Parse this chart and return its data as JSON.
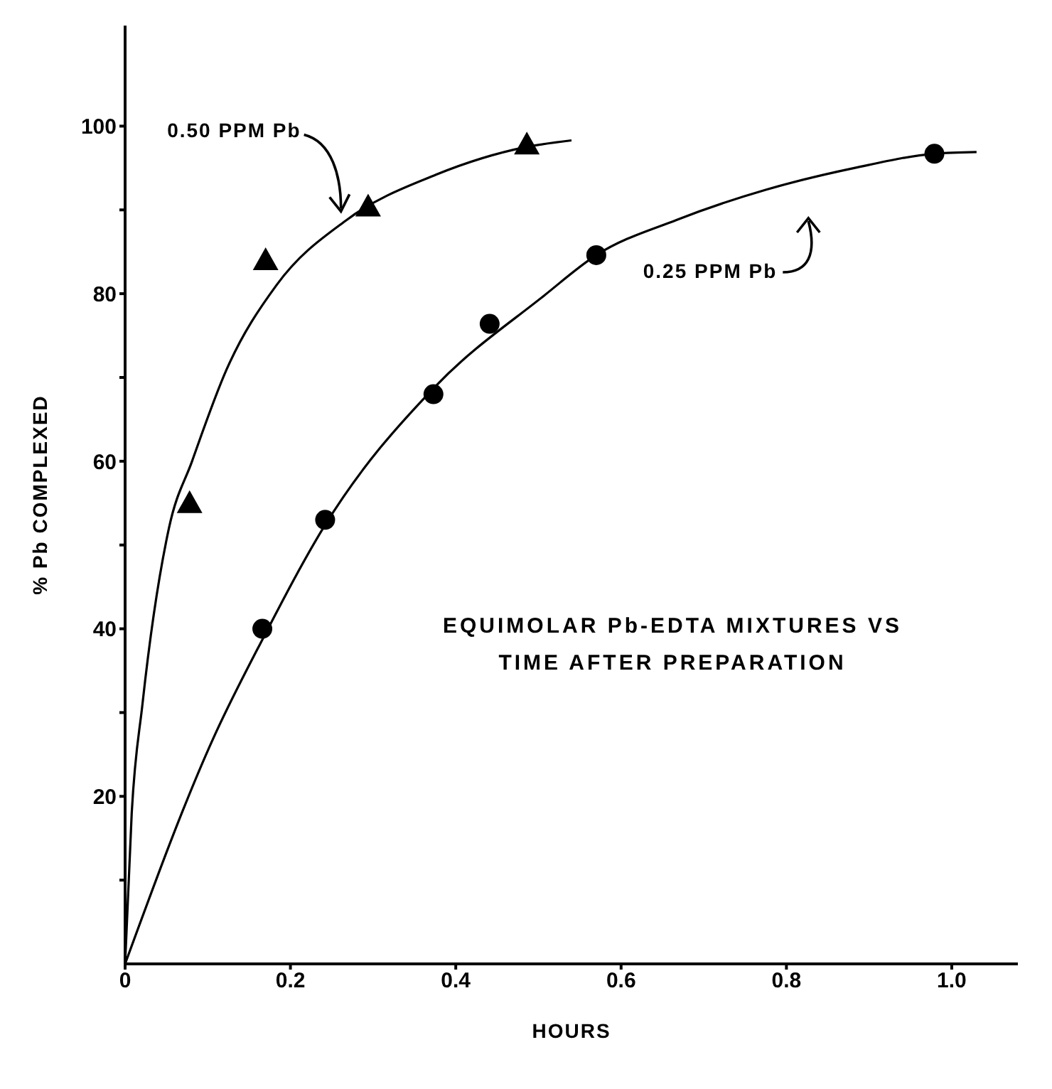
{
  "chart_data": {
    "type": "scatter",
    "title": "EQUIMOLAR Pb-EDTA MIXTURES VS TIME AFTER PREPARATION",
    "xlabel": "HOURS",
    "ylabel": "% Pb COMPLEXED",
    "xlim": [
      0,
      1.08
    ],
    "xticks": [
      0,
      0.2,
      0.4,
      0.6,
      0.8,
      {
        "value": 1,
        "label": "1.0"
      }
    ],
    "ylim": [
      0,
      112
    ],
    "yticks": [
      {
        "value": 10,
        "label": null
      },
      20,
      {
        "value": 30,
        "label": null
      },
      40,
      {
        "value": 50,
        "label": null
      },
      60,
      {
        "value": 70,
        "label": null
      },
      80,
      {
        "value": 90,
        "label": null
      },
      100
    ],
    "grid": false,
    "series": [
      {
        "name": "0.50 PPM Pb",
        "type": "line",
        "marker": "none",
        "line_style": "solid",
        "color": "#000000",
        "x": [
          0,
          0.008,
          0.021,
          0.053,
          0.081,
          0.123,
          0.183,
          0.268,
          0.376,
          0.485,
          0.54
        ],
        "values": [
          0,
          18,
          31,
          52,
          60,
          71,
          81,
          88.8,
          94.2,
          97.5,
          98.3
        ]
      },
      {
        "name": "0.25 PPM Pb",
        "type": "line",
        "marker": "none",
        "line_style": "solid",
        "color": "#000000",
        "x": [
          0,
          0.107,
          0.166,
          0.242,
          0.376,
          0.506,
          0.57,
          0.667,
          0.775,
          0.882,
          0.979,
          1.03
        ],
        "values": [
          0,
          27,
          38.7,
          52.4,
          69,
          79.7,
          84.6,
          88.8,
          92.4,
          95,
          96.7,
          96.9
        ]
      },
      {
        "marker": "triangle",
        "color": "#000000",
        "x": [
          0.078,
          0.17,
          0.294,
          0.486
        ],
        "values": [
          55,
          84,
          90.4,
          97.8
        ]
      },
      {
        "marker": "circle",
        "color": "#000000",
        "x": [
          0.166,
          0.242,
          0.373,
          0.441,
          0.57,
          0.979
        ],
        "values": [
          40,
          53,
          68,
          76.4,
          84.6,
          96.7
        ]
      }
    ]
  }
}
